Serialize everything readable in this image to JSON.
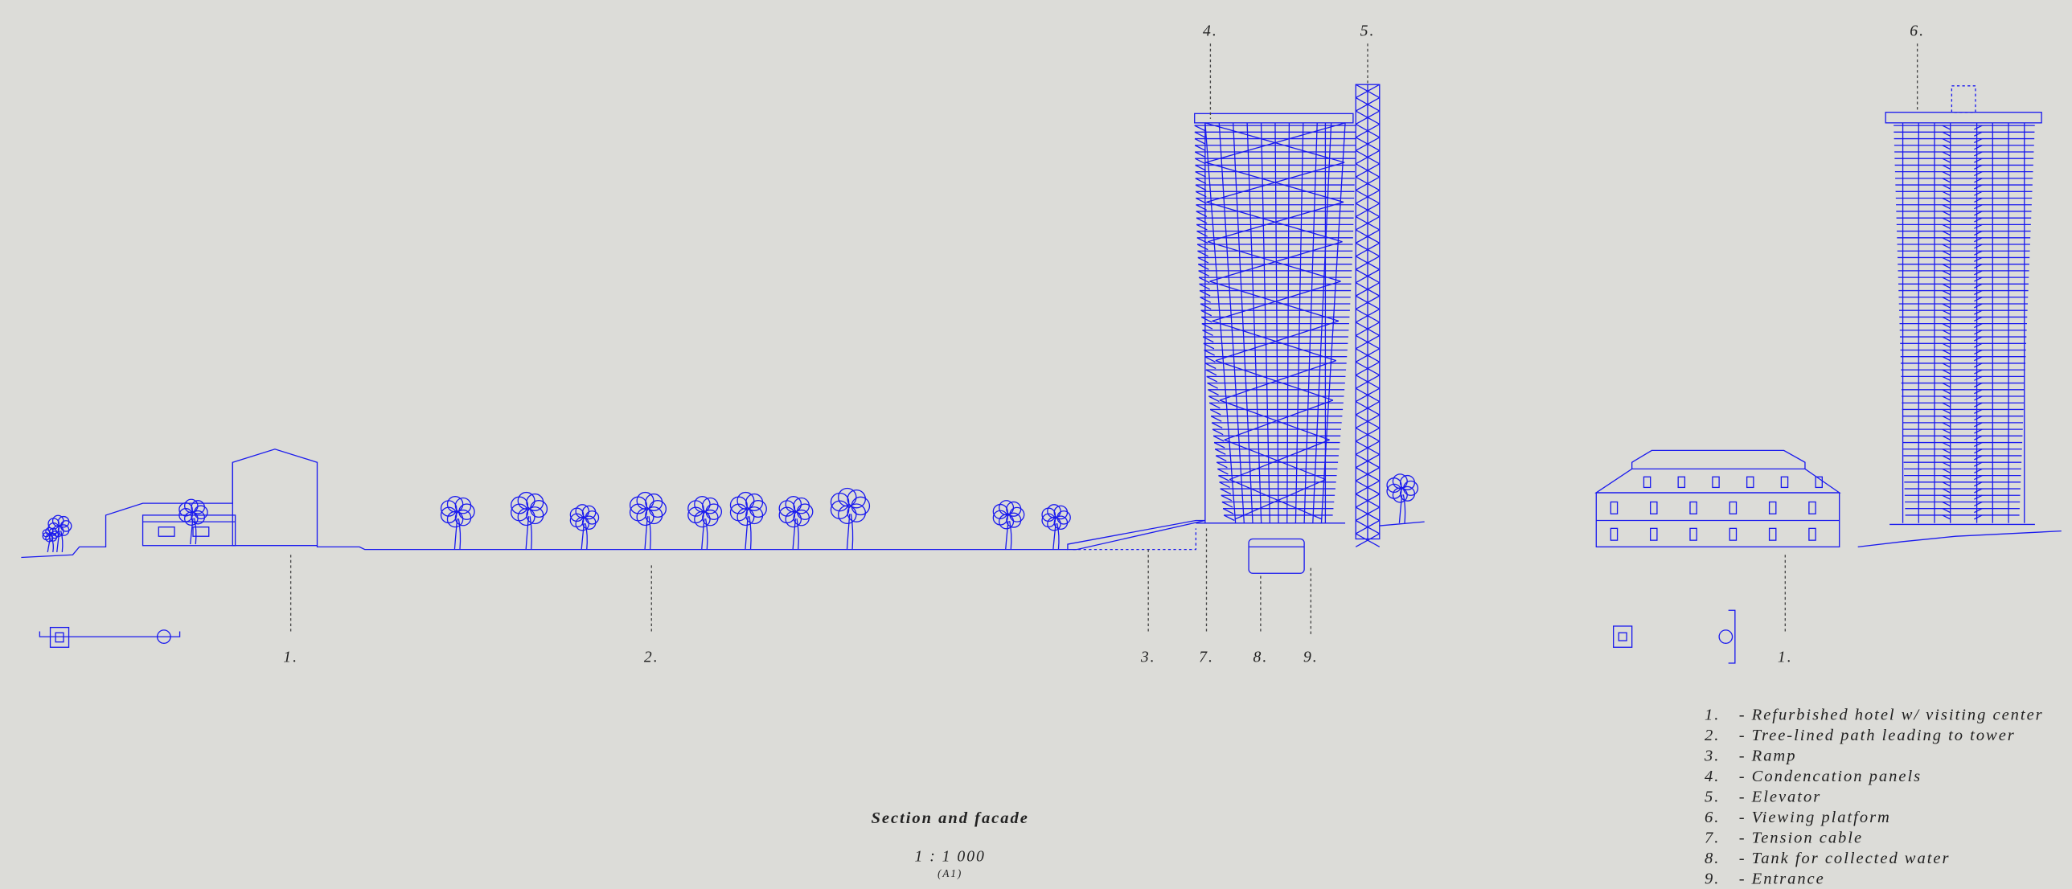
{
  "callouts": [
    {
      "label": "4."
    },
    {
      "label": "5."
    },
    {
      "label": "6."
    },
    {
      "label": "1."
    },
    {
      "label": "2."
    },
    {
      "label": "3."
    },
    {
      "label": "7."
    },
    {
      "label": "8."
    },
    {
      "label": "9."
    },
    {
      "label": "1."
    }
  ],
  "title": "Section and facade",
  "scale": "1 : 1 000",
  "sheet": "(A1)",
  "legend": [
    {
      "number": "1.",
      "text": "- Refurbished hotel w/ visiting center"
    },
    {
      "number": "2.",
      "text": "- Tree-lined path leading to tower"
    },
    {
      "number": "3.",
      "text": "- Ramp"
    },
    {
      "number": "4.",
      "text": "- Condencation panels"
    },
    {
      "number": "5.",
      "text": "- Elevator"
    },
    {
      "number": "6.",
      "text": "- Viewing platform"
    },
    {
      "number": "7.",
      "text": "- Tension cable"
    },
    {
      "number": "8.",
      "text": "- Tank for collected water"
    },
    {
      "number": "9.",
      "text": "- Entrance"
    }
  ]
}
